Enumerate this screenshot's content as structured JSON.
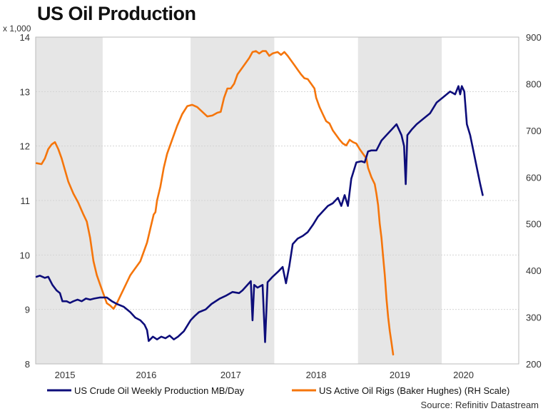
{
  "chart_data": {
    "type": "line",
    "title": "US Oil Production",
    "left_axis_unit": "x 1,000",
    "source": "Source: Refinitiv Datastream",
    "x_range": [
      2014.65,
      2020.42
    ],
    "ylim_left": [
      8,
      14
    ],
    "ylim_right": [
      200,
      900
    ],
    "left_ticks": [
      8,
      9,
      10,
      11,
      12,
      13,
      14
    ],
    "right_ticks": [
      200,
      300,
      400,
      500,
      600,
      700,
      800,
      900
    ],
    "year_labels": [
      {
        "label": "2015",
        "x": 2015.0
      },
      {
        "label": "2016",
        "x": 2015.97
      },
      {
        "label": "2017",
        "x": 2016.98
      },
      {
        "label": "2018",
        "x": 2018.0
      },
      {
        "label": "2019",
        "x": 2019.0
      },
      {
        "label": "2020",
        "x": 2019.76
      }
    ],
    "shaded_years": [
      {
        "start": 2014.65,
        "end": 2015.45
      },
      {
        "start": 2016.5,
        "end": 2017.5
      },
      {
        "start": 2018.5,
        "end": 2019.5
      }
    ],
    "grid": true,
    "series": [
      {
        "name": "US Crude Oil Weekly Production MB/Day",
        "axis": "left",
        "color": "#0d0d7a",
        "points": [
          [
            2014.66,
            9.6
          ],
          [
            2014.7,
            9.62
          ],
          [
            2014.76,
            9.58
          ],
          [
            2014.8,
            9.6
          ],
          [
            2014.85,
            9.45
          ],
          [
            2014.9,
            9.35
          ],
          [
            2014.94,
            9.3
          ],
          [
            2014.97,
            9.15
          ],
          [
            2015.02,
            9.15
          ],
          [
            2015.06,
            9.12
          ],
          [
            2015.1,
            9.15
          ],
          [
            2015.15,
            9.18
          ],
          [
            2015.2,
            9.15
          ],
          [
            2015.25,
            9.2
          ],
          [
            2015.3,
            9.18
          ],
          [
            2015.35,
            9.2
          ],
          [
            2015.42,
            9.22
          ],
          [
            2015.5,
            9.22
          ],
          [
            2015.56,
            9.15
          ],
          [
            2015.62,
            9.1
          ],
          [
            2015.7,
            9.05
          ],
          [
            2015.78,
            8.95
          ],
          [
            2015.84,
            8.85
          ],
          [
            2015.9,
            8.8
          ],
          [
            2015.95,
            8.72
          ],
          [
            2015.98,
            8.62
          ],
          [
            2016.0,
            8.42
          ],
          [
            2016.05,
            8.5
          ],
          [
            2016.1,
            8.45
          ],
          [
            2016.15,
            8.5
          ],
          [
            2016.2,
            8.47
          ],
          [
            2016.25,
            8.52
          ],
          [
            2016.3,
            8.45
          ],
          [
            2016.35,
            8.5
          ],
          [
            2016.42,
            8.6
          ],
          [
            2016.5,
            8.8
          ],
          [
            2016.55,
            8.88
          ],
          [
            2016.6,
            8.95
          ],
          [
            2016.68,
            9.0
          ],
          [
            2016.75,
            9.1
          ],
          [
            2016.85,
            9.2
          ],
          [
            2016.92,
            9.25
          ],
          [
            2017.0,
            9.32
          ],
          [
            2017.08,
            9.3
          ],
          [
            2017.12,
            9.35
          ],
          [
            2017.18,
            9.45
          ],
          [
            2017.22,
            9.52
          ],
          [
            2017.24,
            8.8
          ],
          [
            2017.26,
            9.45
          ],
          [
            2017.3,
            9.4
          ],
          [
            2017.36,
            9.45
          ],
          [
            2017.39,
            8.4
          ],
          [
            2017.42,
            9.5
          ],
          [
            2017.48,
            9.6
          ],
          [
            2017.55,
            9.7
          ],
          [
            2017.6,
            9.78
          ],
          [
            2017.64,
            9.48
          ],
          [
            2017.68,
            9.8
          ],
          [
            2017.72,
            10.2
          ],
          [
            2017.78,
            10.3
          ],
          [
            2017.84,
            10.35
          ],
          [
            2017.9,
            10.42
          ],
          [
            2017.96,
            10.55
          ],
          [
            2018.02,
            10.7
          ],
          [
            2018.08,
            10.8
          ],
          [
            2018.14,
            10.9
          ],
          [
            2018.2,
            10.95
          ],
          [
            2018.26,
            11.05
          ],
          [
            2018.3,
            10.9
          ],
          [
            2018.34,
            11.1
          ],
          [
            2018.38,
            10.9
          ],
          [
            2018.42,
            11.4
          ],
          [
            2018.48,
            11.7
          ],
          [
            2018.54,
            11.72
          ],
          [
            2018.58,
            11.7
          ],
          [
            2018.62,
            11.9
          ],
          [
            2018.66,
            11.92
          ],
          [
            2018.72,
            11.92
          ],
          [
            2018.78,
            12.1
          ],
          [
            2018.84,
            12.2
          ],
          [
            2018.9,
            12.3
          ],
          [
            2018.96,
            12.4
          ],
          [
            2019.02,
            12.2
          ],
          [
            2019.05,
            12.0
          ],
          [
            2019.07,
            11.3
          ],
          [
            2019.09,
            12.2
          ],
          [
            2019.14,
            12.3
          ],
          [
            2019.2,
            12.4
          ],
          [
            2019.28,
            12.5
          ],
          [
            2019.36,
            12.6
          ],
          [
            2019.44,
            12.8
          ],
          [
            2019.52,
            12.9
          ],
          [
            2019.6,
            13.0
          ],
          [
            2019.66,
            12.95
          ],
          [
            2019.7,
            13.1
          ],
          [
            2019.72,
            12.95
          ],
          [
            2019.74,
            13.1
          ],
          [
            2019.77,
            13.0
          ],
          [
            2019.8,
            12.4
          ],
          [
            2019.84,
            12.2
          ],
          [
            2019.88,
            11.9
          ],
          [
            2019.92,
            11.6
          ],
          [
            2019.96,
            11.3
          ],
          [
            2019.99,
            11.1
          ]
        ]
      },
      {
        "name": "US Active Oil Rigs (Baker Hughes) (RH Scale)",
        "axis": "right",
        "color": "#f5750b",
        "points": [
          [
            2014.66,
            630
          ],
          [
            2014.72,
            628
          ],
          [
            2014.76,
            640
          ],
          [
            2014.8,
            660
          ],
          [
            2014.84,
            670
          ],
          [
            2014.88,
            675
          ],
          [
            2014.92,
            660
          ],
          [
            2014.96,
            640
          ],
          [
            2015.0,
            615
          ],
          [
            2015.04,
            590
          ],
          [
            2015.1,
            565
          ],
          [
            2015.16,
            545
          ],
          [
            2015.22,
            520
          ],
          [
            2015.26,
            505
          ],
          [
            2015.3,
            470
          ],
          [
            2015.34,
            420
          ],
          [
            2015.38,
            390
          ],
          [
            2015.42,
            370
          ],
          [
            2015.46,
            350
          ],
          [
            2015.5,
            330
          ],
          [
            2015.54,
            325
          ],
          [
            2015.58,
            318
          ],
          [
            2015.62,
            330
          ],
          [
            2015.66,
            345
          ],
          [
            2015.7,
            360
          ],
          [
            2015.74,
            375
          ],
          [
            2015.78,
            390
          ],
          [
            2015.82,
            400
          ],
          [
            2015.86,
            410
          ],
          [
            2015.9,
            420
          ],
          [
            2015.94,
            440
          ],
          [
            2015.98,
            460
          ],
          [
            2016.02,
            490
          ],
          [
            2016.06,
            520
          ],
          [
            2016.08,
            525
          ],
          [
            2016.1,
            550
          ],
          [
            2016.14,
            580
          ],
          [
            2016.18,
            620
          ],
          [
            2016.22,
            650
          ],
          [
            2016.28,
            680
          ],
          [
            2016.34,
            710
          ],
          [
            2016.4,
            735
          ],
          [
            2016.46,
            752
          ],
          [
            2016.52,
            755
          ],
          [
            2016.58,
            750
          ],
          [
            2016.64,
            740
          ],
          [
            2016.7,
            730
          ],
          [
            2016.76,
            732
          ],
          [
            2016.82,
            738
          ],
          [
            2016.86,
            740
          ],
          [
            2016.9,
            770
          ],
          [
            2016.94,
            790
          ],
          [
            2016.98,
            790
          ],
          [
            2017.02,
            800
          ],
          [
            2017.06,
            820
          ],
          [
            2017.1,
            830
          ],
          [
            2017.16,
            845
          ],
          [
            2017.2,
            855
          ],
          [
            2017.24,
            868
          ],
          [
            2017.28,
            870
          ],
          [
            2017.32,
            865
          ],
          [
            2017.36,
            870
          ],
          [
            2017.4,
            870
          ],
          [
            2017.44,
            860
          ],
          [
            2017.48,
            865
          ],
          [
            2017.54,
            868
          ],
          [
            2017.58,
            862
          ],
          [
            2017.62,
            868
          ],
          [
            2017.66,
            860
          ],
          [
            2017.7,
            850
          ],
          [
            2017.74,
            840
          ],
          [
            2017.78,
            830
          ],
          [
            2017.82,
            820
          ],
          [
            2017.86,
            812
          ],
          [
            2017.9,
            810
          ],
          [
            2017.94,
            800
          ],
          [
            2017.98,
            790
          ],
          [
            2018.0,
            770
          ],
          [
            2018.04,
            750
          ],
          [
            2018.08,
            735
          ],
          [
            2018.12,
            720
          ],
          [
            2018.16,
            715
          ],
          [
            2018.2,
            700
          ],
          [
            2018.24,
            690
          ],
          [
            2018.28,
            680
          ],
          [
            2018.32,
            672
          ],
          [
            2018.36,
            668
          ],
          [
            2018.4,
            680
          ],
          [
            2018.44,
            675
          ],
          [
            2018.48,
            672
          ],
          [
            2018.52,
            660
          ],
          [
            2018.56,
            650
          ],
          [
            2018.6,
            640
          ],
          [
            2018.62,
            620
          ],
          [
            2018.66,
            600
          ],
          [
            2018.7,
            585
          ],
          [
            2018.72,
            565
          ],
          [
            2018.74,
            540
          ],
          [
            2018.76,
            500
          ],
          [
            2018.78,
            470
          ],
          [
            2018.8,
            430
          ],
          [
            2018.82,
            390
          ],
          [
            2018.84,
            340
          ],
          [
            2018.86,
            300
          ],
          [
            2018.88,
            270
          ],
          [
            2018.9,
            245
          ],
          [
            2018.92,
            220
          ]
        ]
      }
    ]
  }
}
